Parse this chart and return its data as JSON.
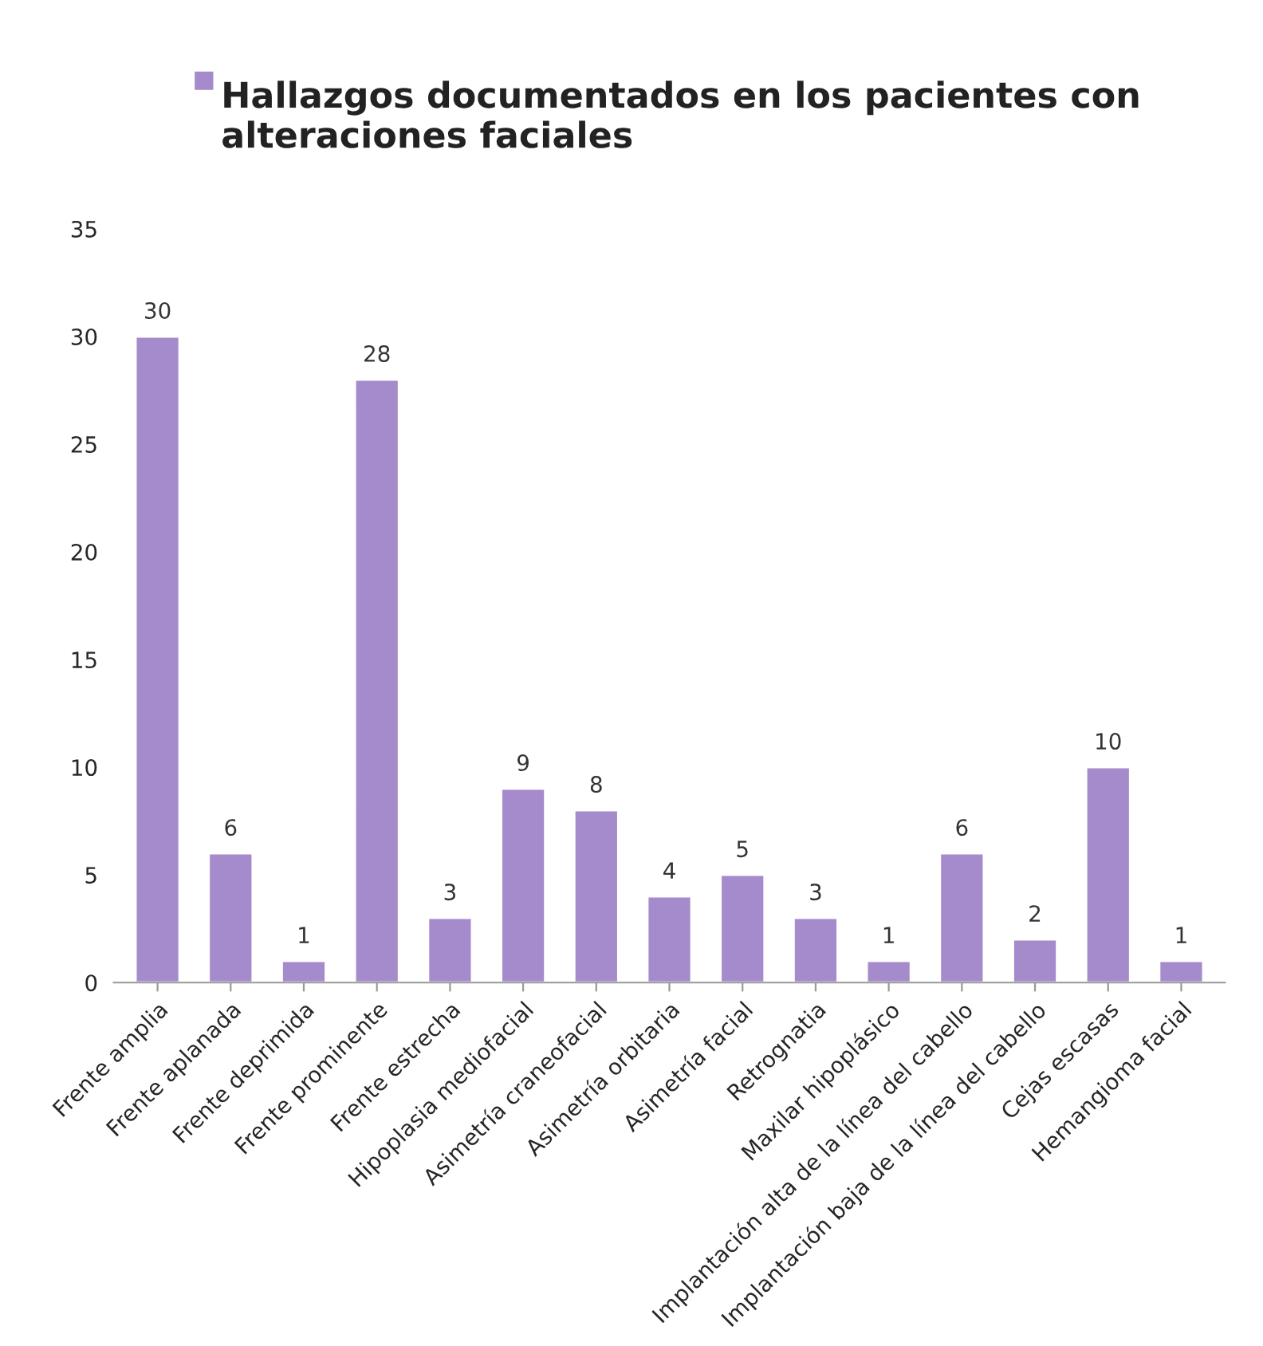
{
  "chart_data": {
    "type": "bar",
    "categories": [
      "Frente amplia",
      "Frente aplanada",
      "Frente deprimida",
      "Frente prominente",
      "Frente estrecha",
      "Hipoplasia mediofacial",
      "Asimetría craneofacial",
      "Asimetría orbitaria",
      "Asimetría facial",
      "Retrognatia",
      "Maxilar hipoplásico",
      "Implantación alta de la línea del cabello",
      "Implantación baja de la línea del cabello",
      "Cejas escasas",
      "Hemangioma facial"
    ],
    "series": [
      {
        "name": "Hallazgos documentados en los pacientes con alteraciones faciales",
        "color": "#a58bcb",
        "values": [
          30,
          6,
          1,
          28,
          3,
          9,
          8,
          4,
          5,
          3,
          1,
          6,
          2,
          10,
          1
        ]
      }
    ],
    "ylim": [
      0,
      35
    ],
    "yticks": [
      0,
      5,
      10,
      15,
      20,
      25,
      30,
      35
    ],
    "data_labels": true,
    "legend": "top",
    "grid": false
  }
}
